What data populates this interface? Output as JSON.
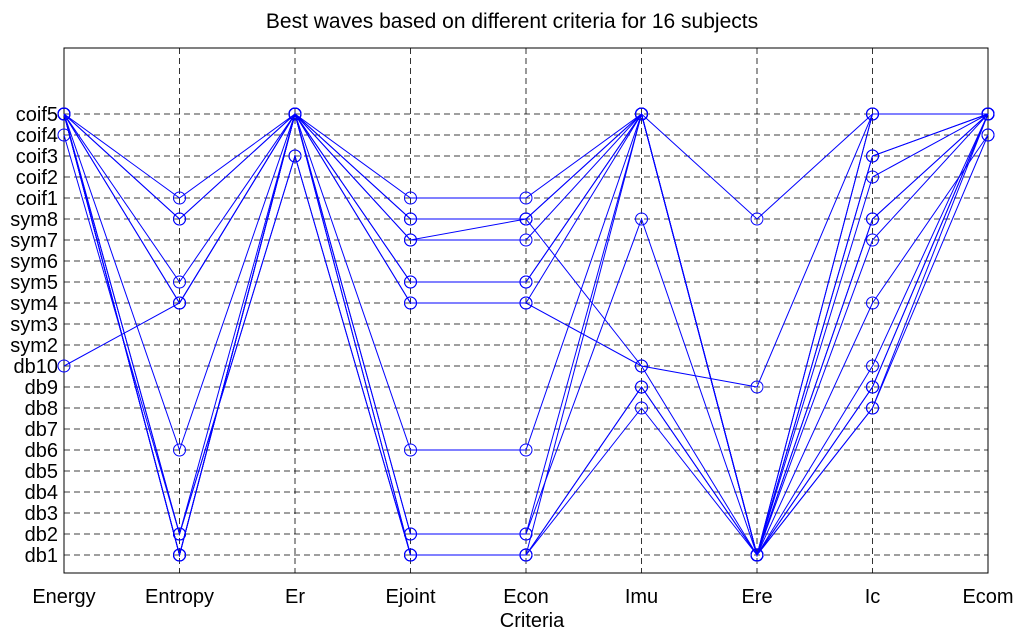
{
  "chart_data": {
    "type": "line",
    "title": "Best waves  based on different criteria for 16 subjects",
    "xlabel": "Criteria",
    "ylabel": "",
    "grid": true,
    "categories": [
      "Energy",
      "Entropy",
      "Er",
      "Ejoint",
      "Econ",
      "Imu",
      "Ere",
      "Ic",
      "Ecom"
    ],
    "y_categories": [
      "db1",
      "db2",
      "db3",
      "db4",
      "db5",
      "db6",
      "db7",
      "db8",
      "db9",
      "db10",
      "sym2",
      "sym3",
      "sym4",
      "sym5",
      "sym6",
      "sym7",
      "sym8",
      "coif1",
      "coif2",
      "coif3",
      "coif4",
      "coif5"
    ],
    "series_color": "#0000ff",
    "series": [
      {
        "values": [
          "coif5",
          "coif1",
          "coif5",
          "coif1",
          "coif1",
          "coif5",
          "sym8",
          "coif5",
          "coif5"
        ]
      },
      {
        "values": [
          "coif5",
          "sym8",
          "coif5",
          "sym8",
          "sym8",
          "coif5",
          "db1",
          "coif3",
          "coif5"
        ]
      },
      {
        "values": [
          "coif5",
          "sym5",
          "coif5",
          "sym7",
          "sym7",
          "coif5",
          "db1",
          "coif2",
          "coif5"
        ]
      },
      {
        "values": [
          "coif5",
          "sym4",
          "coif5",
          "sym5",
          "sym5",
          "coif5",
          "db1",
          "sym8",
          "coif5"
        ]
      },
      {
        "values": [
          "coif5",
          "db6",
          "coif5",
          "sym4",
          "sym4",
          "coif5",
          "db1",
          "sym7",
          "coif5"
        ]
      },
      {
        "values": [
          "coif5",
          "db1",
          "coif5",
          "sym5",
          "sym5",
          "coif5",
          "db1",
          "sym4",
          "coif4"
        ]
      },
      {
        "values": [
          "coif5",
          "db2",
          "coif5",
          "db6",
          "db6",
          "coif5",
          "db1",
          "db10",
          "coif5"
        ]
      },
      {
        "values": [
          "coif5",
          "db1",
          "coif5",
          "db2",
          "db2",
          "coif5",
          "db1",
          "db9",
          "coif5"
        ]
      },
      {
        "values": [
          "coif4",
          "db2",
          "coif3",
          "db1",
          "db1",
          "db8",
          "db1",
          "db8",
          "coif4"
        ]
      },
      {
        "values": [
          "db10",
          "sym4",
          "coif5",
          "sym4",
          "sym4",
          "db10",
          "db1",
          "db9",
          "coif5"
        ]
      },
      {
        "values": [
          "coif5",
          "db1",
          "coif5",
          "db2",
          "db2",
          "sym8",
          "db1",
          "coif5",
          "coif5"
        ]
      },
      {
        "values": [
          "coif5",
          "db2",
          "coif3",
          "db1",
          "db1",
          "db9",
          "db1",
          "coif3",
          "coif5"
        ]
      },
      {
        "values": [
          "coif5",
          "sym4",
          "coif5",
          "sym8",
          "sym8",
          "db10",
          "db9",
          "coif5",
          "coif5"
        ]
      },
      {
        "values": [
          "coif5",
          "sym8",
          "coif5",
          "sym7",
          "sym8",
          "coif5",
          "db1",
          "coif5",
          "coif5"
        ]
      },
      {
        "values": [
          "coif5",
          "db1",
          "coif5",
          "db1",
          "db1",
          "db9",
          "db1",
          "sym8",
          "coif5"
        ]
      },
      {
        "values": [
          "coif5",
          "db1",
          "coif5",
          "db1",
          "db1",
          "coif5",
          "db1",
          "db8",
          "coif5"
        ]
      }
    ]
  }
}
